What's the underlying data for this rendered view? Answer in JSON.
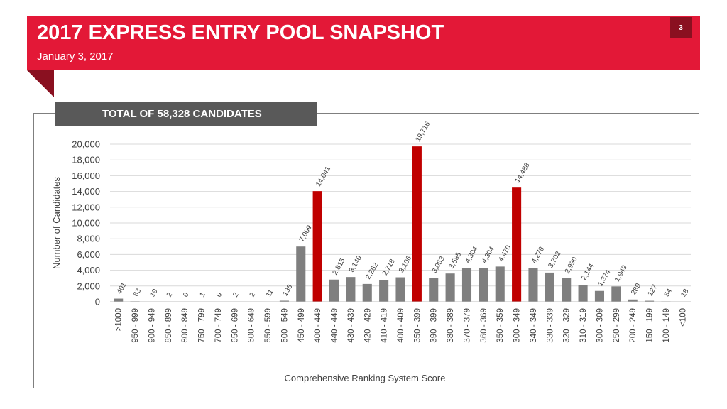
{
  "slide": {
    "title": "2017 EXPRESS ENTRY POOL SNAPSHOT",
    "subtitle": "January 3, 2017",
    "page_number": "3",
    "total_label": "TOTAL OF 58,328 CANDIDATES"
  },
  "colors": {
    "banner": "#e31837",
    "banner_dark": "#8a1020",
    "bar_default": "#7f7f7f",
    "bar_highlight": "#c00000",
    "total_box": "#595959"
  },
  "chart_data": {
    "type": "bar",
    "xlabel": "Comprehensive Ranking System Score",
    "ylabel": "Number of Candidates",
    "ylim": [
      0,
      20000
    ],
    "yticks": [
      0,
      2000,
      4000,
      6000,
      8000,
      10000,
      12000,
      14000,
      16000,
      18000,
      20000
    ],
    "ytick_labels": [
      "0",
      "2,000",
      "4,000",
      "6,000",
      "8,000",
      "10,000",
      "12,000",
      "14,000",
      "16,000",
      "18,000",
      "20,000"
    ],
    "grid": true,
    "categories": [
      ">1000",
      "950 - 999",
      "900 - 949",
      "850 - 899",
      "800 - 849",
      "750 - 799",
      "700 - 749",
      "650 - 699",
      "600 - 649",
      "550 - 599",
      "500 - 549",
      "450 - 499",
      "400 - 449",
      "440 - 449",
      "430 - 439",
      "420 - 429",
      "410 - 419",
      "400 - 409",
      "350 - 399",
      "390 - 399",
      "380 - 389",
      "370 - 379",
      "360 - 369",
      "350 - 359",
      "300 - 349",
      "340 - 349",
      "330 - 339",
      "320 - 329",
      "310 - 319",
      "300 - 309",
      "250 - 299",
      "200 - 249",
      "150 - 199",
      "100 - 149",
      "<100"
    ],
    "values": [
      401,
      63,
      19,
      2,
      0,
      1,
      0,
      2,
      2,
      11,
      136,
      7009,
      14041,
      2815,
      3140,
      2262,
      2718,
      3106,
      19716,
      3053,
      3585,
      4304,
      4304,
      4470,
      14488,
      4278,
      3702,
      2990,
      2144,
      1374,
      1949,
      289,
      127,
      54,
      18
    ],
    "value_labels": [
      "401",
      "63",
      "19",
      "2",
      "0",
      "1",
      "0",
      "2",
      "2",
      "11",
      "136",
      "7,009",
      "14,041",
      "2,815",
      "3,140",
      "2,262",
      "2,718",
      "3,106",
      "19,716",
      "3,053",
      "3,585",
      "4,304",
      "4,304",
      "4,470",
      "14,488",
      "4,278",
      "3,702",
      "2,990",
      "2,144",
      "1,374",
      "1,949",
      "289",
      "127",
      "54",
      "18"
    ],
    "highlighted": [
      "400 - 449",
      "350 - 399",
      "300 - 349"
    ]
  }
}
